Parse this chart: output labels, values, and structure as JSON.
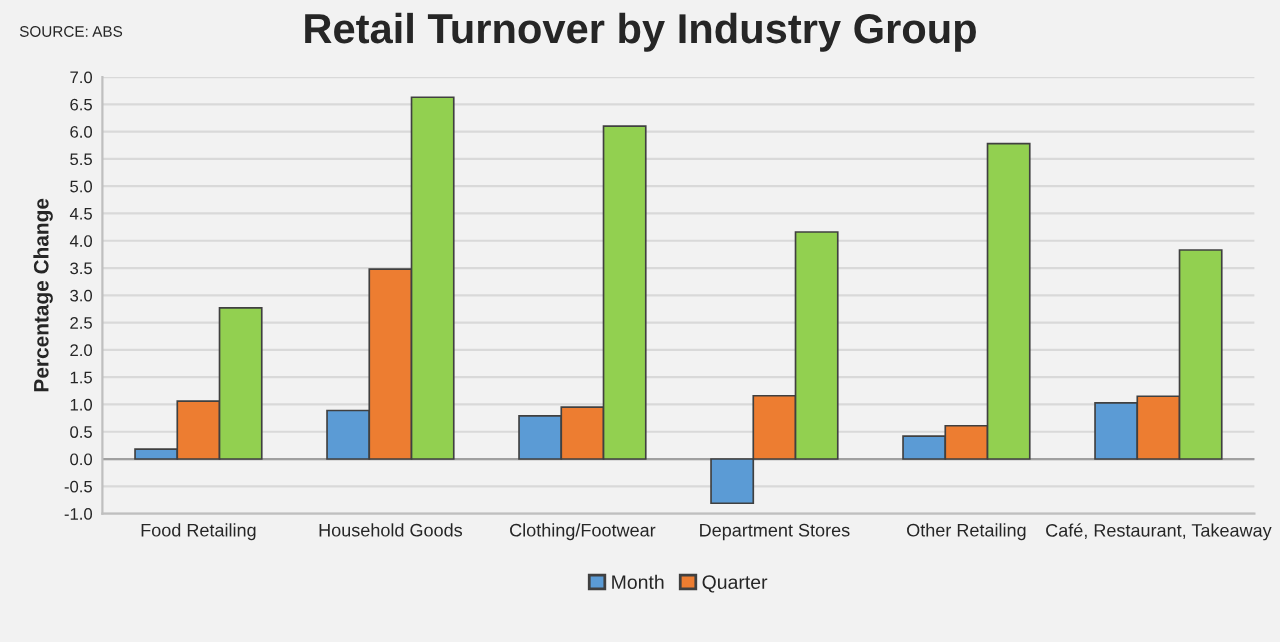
{
  "chart_data": {
    "type": "bar",
    "title": "Retail Turnover by Industry Group",
    "ylabel": "Percentage Change",
    "annotations": [
      "SOURCE: ABS"
    ],
    "categories": [
      "Food Retailing",
      "Household Goods",
      "Clothing/Footwear",
      "Department Stores",
      "Other Retailing",
      "Café, Restaurant, Takeaway"
    ],
    "series": [
      {
        "name": "Month",
        "color": "#5b9bd5",
        "values": [
          0.18,
          0.89,
          0.79,
          -0.81,
          0.42,
          1.03
        ]
      },
      {
        "name": "Quarter",
        "color": "#ed7d31",
        "values": [
          1.06,
          3.48,
          0.95,
          1.16,
          0.61,
          1.15
        ]
      },
      {
        "color": "#92d050",
        "values": [
          2.77,
          6.63,
          6.1,
          4.16,
          5.78,
          3.83
        ]
      }
    ],
    "ylim": [
      -1.0,
      7.0
    ],
    "yticks": [
      {
        "value": -1,
        "label": "-1.0"
      },
      {
        "value": -0.5,
        "label": "-0.5"
      },
      {
        "value": 0,
        "label": "0.0"
      },
      {
        "value": 0.5,
        "label": "0.5"
      },
      {
        "value": 1,
        "label": "1.0"
      },
      {
        "value": 1.5,
        "label": "1.5"
      },
      {
        "value": 2,
        "label": "2.0"
      },
      {
        "value": 2.5,
        "label": "2.5"
      },
      {
        "value": 3,
        "label": "3.0"
      },
      {
        "value": 3.5,
        "label": "3.5"
      },
      {
        "value": 4,
        "label": "4.0"
      },
      {
        "value": 4.5,
        "label": "4.5"
      },
      {
        "value": 5,
        "label": "5.0"
      },
      {
        "value": 5.5,
        "label": "5.5"
      },
      {
        "value": 6,
        "label": "6.0"
      },
      {
        "value": 6.5,
        "label": "6.5"
      },
      {
        "value": 7,
        "label": "7.0"
      }
    ],
    "grid": "y",
    "legend": "bottom"
  }
}
